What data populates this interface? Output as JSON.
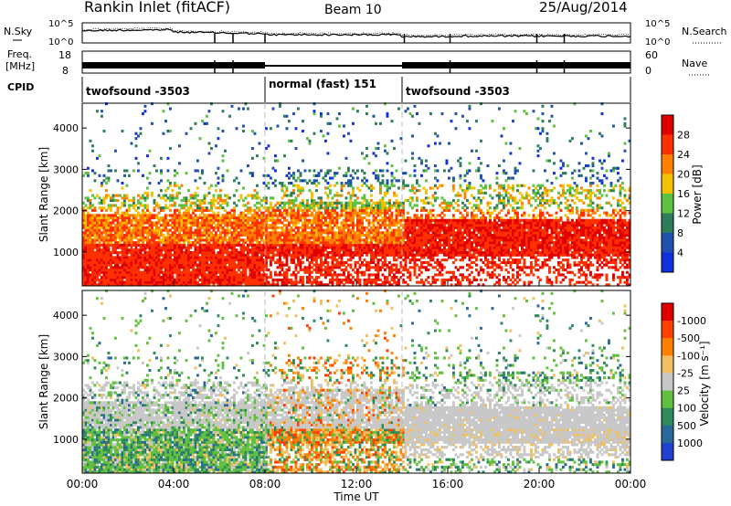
{
  "header": {
    "title": "Rankin Inlet (fitACF)",
    "beam": "Beam 10",
    "date": "25/Aug/2014"
  },
  "noise_panel": {
    "left_label": "N.Sky",
    "right_label": "N.Search",
    "left_ticks": [
      "10^5",
      "10^0"
    ],
    "right_ticks": [
      "10^5",
      "10^0"
    ]
  },
  "freq_panel": {
    "left_label_1": "Freq.",
    "left_label_2": "[MHz]",
    "right_label": "Nave",
    "left_ticks": [
      "18",
      "8"
    ],
    "right_ticks": [
      "60",
      "0"
    ]
  },
  "cpid_panel": {
    "label": "CPID",
    "modes": [
      {
        "name": "twofsound -3503",
        "start_hour": 0,
        "end_hour": 8
      },
      {
        "name": "normal (fast) 151",
        "start_hour": 8,
        "end_hour": 14
      },
      {
        "name": "twofsound -3503",
        "start_hour": 14,
        "end_hour": 24
      }
    ]
  },
  "chart_data": [
    {
      "type": "heatmap",
      "panel": "power",
      "title": "",
      "ylabel": "Slant Range [km]",
      "yticks": [
        "1000",
        "2000",
        "3000",
        "4000"
      ],
      "ylim": [
        180,
        4600
      ],
      "xlim": [
        0,
        24
      ],
      "colorbar_label": "Power [dB]",
      "colorbar_ticks": [
        "4",
        "8",
        "12",
        "16",
        "20",
        "24",
        "28"
      ],
      "colors": [
        "#1030e0",
        "#2050b0",
        "#2e7d5a",
        "#5cc040",
        "#f4c000",
        "#ff8000",
        "#ff3000",
        "#e00000"
      ]
    },
    {
      "type": "heatmap",
      "panel": "velocity",
      "title": "",
      "ylabel": "Slant Range [km]",
      "yticks": [
        "1000",
        "2000",
        "3000",
        "4000"
      ],
      "ylim": [
        180,
        4600
      ],
      "xlim": [
        0,
        24
      ],
      "xlabel": "Time UT",
      "xticks": [
        "00:00",
        "04:00",
        "08:00",
        "12:00",
        "16:00",
        "20:00",
        "00:00"
      ],
      "colorbar_label": "Velocity [m s⁻¹]",
      "colorbar_ticks": [
        "1000",
        "500",
        "100",
        "25",
        "-25",
        "-100",
        "-500",
        "-1000"
      ],
      "colors": [
        "#2040d0",
        "#2a6a9a",
        "#2e8a5a",
        "#62c040",
        "#c8c8c8",
        "#f0c060",
        "#ff8000",
        "#ff4000",
        "#e00000"
      ],
      "ground_scatter_color": "#c0c0c0"
    }
  ]
}
